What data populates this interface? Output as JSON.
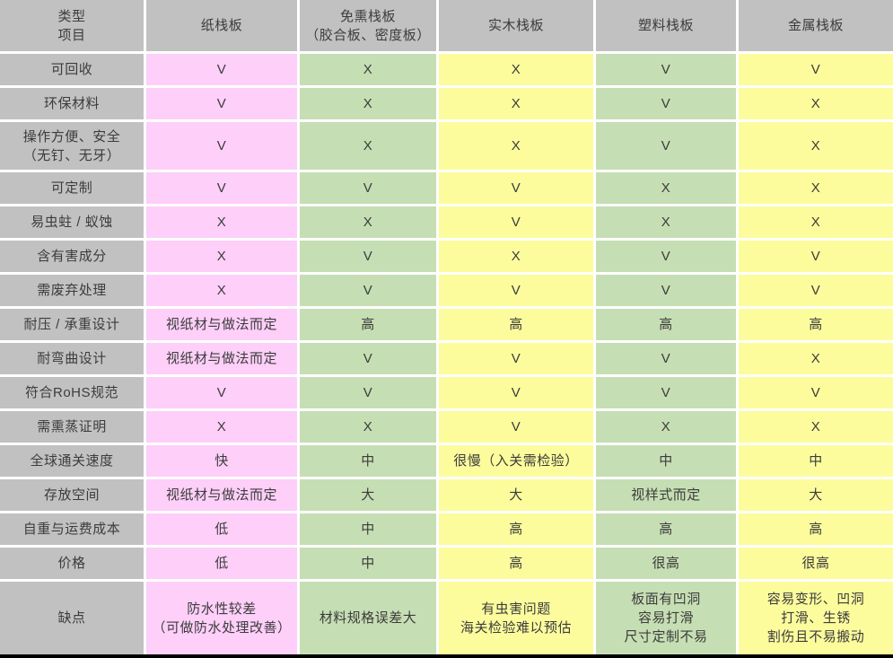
{
  "colors": {
    "header_bg": "#c1c1c1",
    "row_label_bg": "#c1c1c1",
    "column_bg": [
      "#fdcff9",
      "#c6deb3",
      "#fcfc9d",
      "#c6deb3",
      "#fcfc9d"
    ],
    "cell_gap": "#ffffff",
    "text": "#3c3c3c",
    "bottom_rule": "#000000"
  },
  "chart_data": {
    "type": "table",
    "title": "",
    "corner_header": {
      "top": "类型",
      "bottom": "项目"
    },
    "columns": [
      {
        "id": "paper-pallet",
        "label": "纸栈板"
      },
      {
        "id": "fumigation-free-pallet",
        "label": "免熏栈板\n（胶合板、密度板）"
      },
      {
        "id": "solid-wood-pallet",
        "label": "实木栈板"
      },
      {
        "id": "plastic-pallet",
        "label": "塑料栈板"
      },
      {
        "id": "metal-pallet",
        "label": "金属栈板"
      }
    ],
    "rows": [
      {
        "label": "可回收",
        "values": [
          "V",
          "X",
          "X",
          "V",
          "V"
        ]
      },
      {
        "label": "环保材料",
        "values": [
          "V",
          "X",
          "X",
          "V",
          "X"
        ]
      },
      {
        "label": "操作方便、安全\n（无钉、无牙）",
        "values": [
          "V",
          "X",
          "X",
          "V",
          "X"
        ]
      },
      {
        "label": "可定制",
        "values": [
          "V",
          "V",
          "V",
          "X",
          "X"
        ]
      },
      {
        "label": "易虫蛀 / 蚁蚀",
        "values": [
          "X",
          "X",
          "V",
          "X",
          "X"
        ]
      },
      {
        "label": "含有害成分",
        "values": [
          "X",
          "V",
          "X",
          "V",
          "V"
        ]
      },
      {
        "label": "需废弃处理",
        "values": [
          "X",
          "V",
          "V",
          "V",
          "V"
        ]
      },
      {
        "label": "耐压 / 承重设计",
        "values": [
          "视纸材与做法而定",
          "高",
          "高",
          "高",
          "高"
        ]
      },
      {
        "label": "耐弯曲设计",
        "values": [
          "视纸材与做法而定",
          "V",
          "V",
          "V",
          "X"
        ]
      },
      {
        "label": "符合RoHS规范",
        "values": [
          "V",
          "V",
          "V",
          "V",
          "V"
        ]
      },
      {
        "label": "需熏蒸证明",
        "values": [
          "X",
          "X",
          "V",
          "X",
          "X"
        ]
      },
      {
        "label": "全球通关速度",
        "values": [
          "快",
          "中",
          "很慢（入关需检验）",
          "中",
          "中"
        ]
      },
      {
        "label": "存放空间",
        "values": [
          "视纸材与做法而定",
          "大",
          "大",
          "视样式而定",
          "大"
        ]
      },
      {
        "label": "自重与运费成本",
        "values": [
          "低",
          "中",
          "高",
          "高",
          "高"
        ]
      },
      {
        "label": "价格",
        "values": [
          "低",
          "中",
          "高",
          "很高",
          "很高"
        ]
      },
      {
        "label": "缺点",
        "values": [
          "防水性较差\n（可做防水处理改善）",
          "材料规格误差大",
          "有虫害问题\n海关检验难以预估",
          "板面有凹洞\n容易打滑\n尺寸定制不易",
          "容易变形、凹洞\n打滑、生锈\n割伤且不易搬动"
        ]
      }
    ]
  }
}
